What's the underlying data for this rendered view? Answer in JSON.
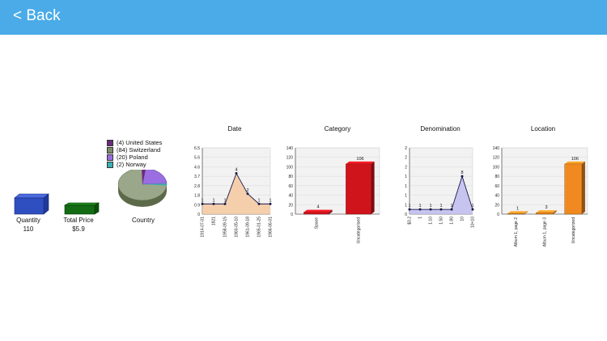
{
  "header": {
    "back_label": "< Back",
    "bg_color": "#4aabe8"
  },
  "summary": {
    "quantity": {
      "label": "Quantity",
      "value": "110",
      "color": "#2f4fc0"
    },
    "total_price": {
      "label": "Total Price",
      "value": "$5.9",
      "color": "#136b13"
    }
  },
  "country": {
    "label": "Country",
    "legend": [
      {
        "text": "(4) United States",
        "color": "#6b2a7a"
      },
      {
        "text": "(84) Switzerland",
        "color": "#7d8a68"
      },
      {
        "text": "(20) Poland",
        "color": "#9a6ee0"
      },
      {
        "text": "(2) Norway",
        "color": "#3ab0b0"
      }
    ]
  },
  "chart_data": [
    {
      "type": "area",
      "title": "Date",
      "categories": [
        "1914-07-01",
        "1921",
        "1958-09-15",
        "1960-05-10",
        "1961-09-18",
        "1965-01-25",
        "1966-06-01"
      ],
      "values": [
        1,
        1,
        1,
        4,
        2,
        1,
        1
      ],
      "yticks": [
        "0",
        "0.9",
        "1.8",
        "2.8",
        "3.7",
        "4.6",
        "5.6",
        "6.5"
      ],
      "ylim": [
        0,
        6.5
      ],
      "color": "#f6c9a0"
    },
    {
      "type": "bar",
      "title": "Category",
      "categories": [
        "Space",
        "Uncategorised"
      ],
      "values": [
        4,
        106
      ],
      "yticks": [
        "0",
        "20",
        "40",
        "60",
        "80",
        "100",
        "120",
        "140"
      ],
      "ylim": [
        0,
        140
      ],
      "color": "#d0141c"
    },
    {
      "type": "area",
      "title": "Denomination",
      "categories": [
        "$3.2",
        "1",
        "1.10",
        "1.50",
        "1.80",
        "10",
        "10+10"
      ],
      "values": [
        1,
        1,
        1,
        1,
        1,
        8,
        1
      ],
      "yticks": [
        "0",
        "1",
        "1",
        "1",
        "1",
        "2",
        "2",
        "2"
      ],
      "ylim": [
        0,
        14
      ],
      "color": "#bfbdf0"
    },
    {
      "type": "bar",
      "title": "Location",
      "categories": [
        "Album 1, page 2",
        "Album 1, page 3",
        "Uncategorized"
      ],
      "values": [
        1,
        3,
        106
      ],
      "yticks": [
        "0",
        "20",
        "40",
        "60",
        "80",
        "100",
        "120",
        "140"
      ],
      "ylim": [
        0,
        140
      ],
      "color": "#f08a20"
    }
  ]
}
